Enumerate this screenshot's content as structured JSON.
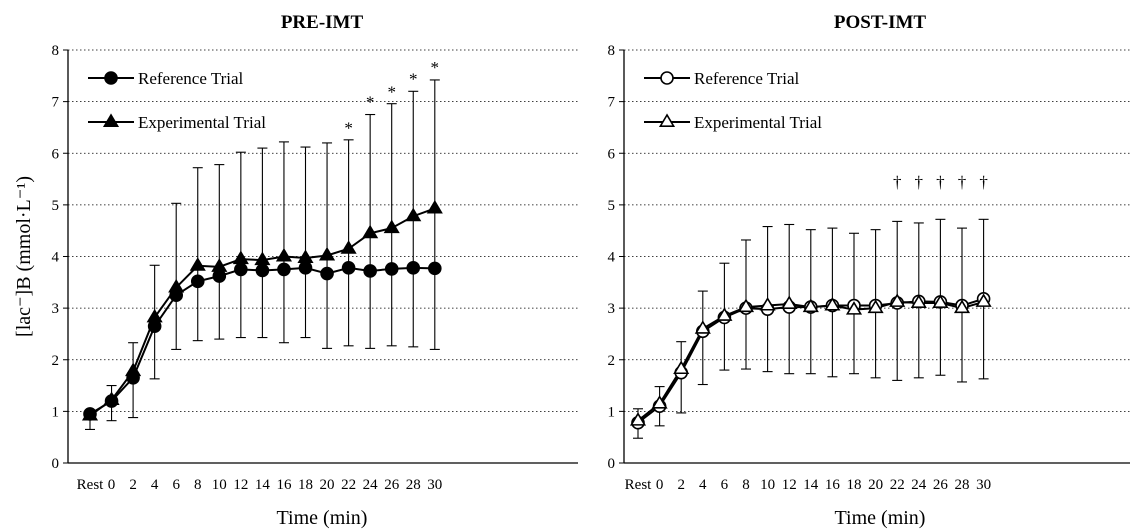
{
  "chart_data": [
    {
      "type": "line",
      "title": "PRE-IMT",
      "xlabel": "Time (min)",
      "ylabel": "[lac⁻]B (mmol·L⁻¹)",
      "ylim": [
        0,
        8
      ],
      "yticks": [
        0,
        1,
        2,
        3,
        4,
        5,
        6,
        7,
        8
      ],
      "grid": true,
      "legend_position": "top-left",
      "categories": [
        "Rest",
        "0",
        "2",
        "4",
        "6",
        "8",
        "10",
        "12",
        "14",
        "16",
        "18",
        "20",
        "22",
        "24",
        "26",
        "28",
        "30"
      ],
      "series": [
        {
          "name": "Reference Trial",
          "marker": "filled-circle",
          "values": [
            0.95,
            1.2,
            1.65,
            2.65,
            3.25,
            3.52,
            3.62,
            3.75,
            3.73,
            3.75,
            3.78,
            3.67,
            3.78,
            3.72,
            3.76,
            3.78,
            3.77
          ]
        },
        {
          "name": "Experimental Trial",
          "marker": "filled-triangle",
          "values": [
            0.92,
            1.22,
            1.78,
            2.82,
            3.4,
            3.82,
            3.8,
            3.95,
            3.93,
            4.0,
            3.97,
            4.02,
            4.15,
            4.45,
            4.55,
            4.78,
            4.93
          ],
          "error_upper": [
            0.95,
            1.5,
            2.33,
            3.83,
            5.03,
            5.72,
            5.78,
            6.02,
            6.1,
            6.22,
            6.12,
            6.2,
            6.26,
            6.75,
            6.96,
            7.2,
            7.42
          ],
          "error_lower": [
            0.65,
            0.82,
            0.88,
            1.63,
            2.2,
            2.37,
            2.4,
            2.43,
            2.43,
            2.33,
            2.43,
            2.22,
            2.27,
            2.22,
            2.27,
            2.25,
            2.2
          ]
        }
      ],
      "annotations": [
        {
          "x": "22",
          "symbol": "*",
          "y": 6.5
        },
        {
          "x": "24",
          "symbol": "*",
          "y": 7.0
        },
        {
          "x": "26",
          "symbol": "*",
          "y": 7.2
        },
        {
          "x": "28",
          "symbol": "*",
          "y": 7.45
        },
        {
          "x": "30",
          "symbol": "*",
          "y": 7.67
        }
      ]
    },
    {
      "type": "line",
      "title": "POST-IMT",
      "xlabel": "Time (min)",
      "ylabel": "",
      "ylim": [
        0,
        8
      ],
      "yticks": [
        0,
        1,
        2,
        3,
        4,
        5,
        6,
        7,
        8
      ],
      "grid": true,
      "legend_position": "top-left",
      "categories": [
        "Rest",
        "0",
        "2",
        "4",
        "6",
        "8",
        "10",
        "12",
        "14",
        "16",
        "18",
        "20",
        "22",
        "24",
        "26",
        "28",
        "30"
      ],
      "series": [
        {
          "name": "Reference Trial",
          "marker": "open-circle",
          "values": [
            0.78,
            1.1,
            1.75,
            2.55,
            2.82,
            3.0,
            2.98,
            3.02,
            3.02,
            3.05,
            3.05,
            3.05,
            3.1,
            3.13,
            3.12,
            3.05,
            3.18
          ]
        },
        {
          "name": "Experimental Trial",
          "marker": "open-triangle",
          "values": [
            0.82,
            1.15,
            1.82,
            2.6,
            2.85,
            3.02,
            3.05,
            3.08,
            3.02,
            3.05,
            2.97,
            3.0,
            3.12,
            3.1,
            3.1,
            3.0,
            3.12
          ],
          "error_upper": [
            1.05,
            1.48,
            2.35,
            3.33,
            3.87,
            4.32,
            4.58,
            4.62,
            4.52,
            4.55,
            4.45,
            4.52,
            4.68,
            4.65,
            4.72,
            4.55,
            4.72
          ],
          "error_lower": [
            0.48,
            0.72,
            0.97,
            1.52,
            1.8,
            1.82,
            1.77,
            1.73,
            1.73,
            1.67,
            1.73,
            1.65,
            1.6,
            1.65,
            1.7,
            1.57,
            1.63
          ]
        }
      ],
      "annotations": [
        {
          "x": "22",
          "symbol": "†",
          "y": 5.45
        },
        {
          "x": "24",
          "symbol": "†",
          "y": 5.45
        },
        {
          "x": "26",
          "symbol": "†",
          "y": 5.45
        },
        {
          "x": "28",
          "symbol": "†",
          "y": 5.45
        },
        {
          "x": "30",
          "symbol": "†",
          "y": 5.45
        }
      ]
    }
  ]
}
